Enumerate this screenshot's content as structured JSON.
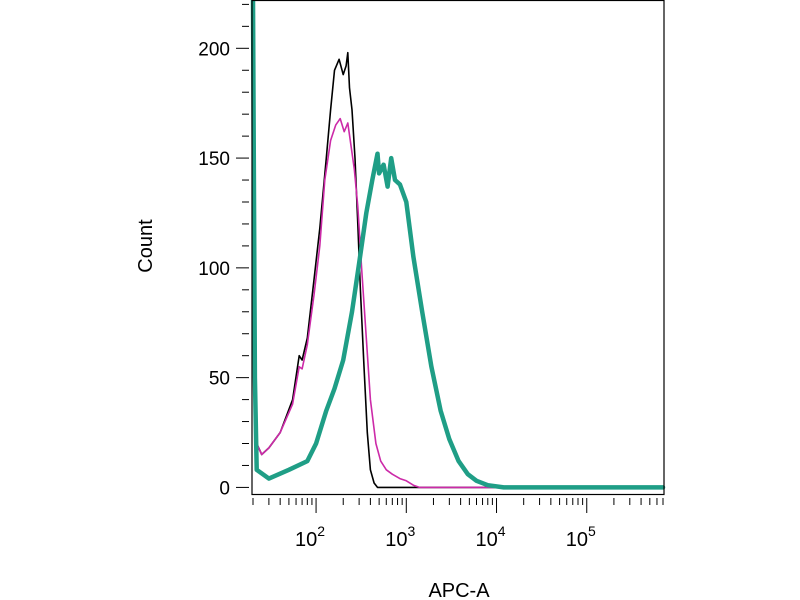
{
  "chart_data": {
    "type": "line",
    "title": "",
    "xlabel": "APC-A",
    "ylabel": "Count",
    "x_scale": "log",
    "xlim": [
      20,
      700000
    ],
    "ylim": [
      -3,
      222
    ],
    "grid": false,
    "legend": "none",
    "y_ticks": [
      0,
      50,
      100,
      150,
      200
    ],
    "x_ticks": [
      {
        "value": 100,
        "base": "10",
        "exp": "2"
      },
      {
        "value": 1000,
        "base": "10",
        "exp": "3"
      },
      {
        "value": 10000,
        "base": "10",
        "exp": "4"
      },
      {
        "value": 100000,
        "base": "10",
        "exp": "5"
      }
    ],
    "series": [
      {
        "color": "#000000",
        "stroke": "thin",
        "points": [
          [
            20,
            240
          ],
          [
            21,
            60
          ],
          [
            22,
            20
          ],
          [
            25,
            15
          ],
          [
            30,
            18
          ],
          [
            40,
            25
          ],
          [
            55,
            40
          ],
          [
            65,
            60
          ],
          [
            70,
            58
          ],
          [
            80,
            68
          ],
          [
            95,
            95
          ],
          [
            110,
            118
          ],
          [
            130,
            150
          ],
          [
            145,
            172
          ],
          [
            160,
            190
          ],
          [
            180,
            195
          ],
          [
            200,
            188
          ],
          [
            215,
            192
          ],
          [
            225,
            198
          ],
          [
            235,
            182
          ],
          [
            250,
            172
          ],
          [
            270,
            150
          ],
          [
            290,
            120
          ],
          [
            310,
            90
          ],
          [
            340,
            55
          ],
          [
            370,
            25
          ],
          [
            400,
            8
          ],
          [
            440,
            2
          ],
          [
            480,
            0
          ],
          [
            600,
            0
          ],
          [
            700000,
            0
          ]
        ]
      },
      {
        "color": "#cc2aa8",
        "stroke": "thin",
        "points": [
          [
            20,
            240
          ],
          [
            21,
            60
          ],
          [
            22,
            20
          ],
          [
            25,
            15
          ],
          [
            30,
            18
          ],
          [
            40,
            25
          ],
          [
            55,
            38
          ],
          [
            65,
            55
          ],
          [
            70,
            54
          ],
          [
            80,
            65
          ],
          [
            95,
            88
          ],
          [
            110,
            110
          ],
          [
            125,
            140
          ],
          [
            145,
            158
          ],
          [
            165,
            165
          ],
          [
            185,
            168
          ],
          [
            205,
            162
          ],
          [
            225,
            166
          ],
          [
            245,
            155
          ],
          [
            265,
            145
          ],
          [
            290,
            128
          ],
          [
            320,
            100
          ],
          [
            360,
            68
          ],
          [
            400,
            40
          ],
          [
            460,
            20
          ],
          [
            520,
            12
          ],
          [
            600,
            8
          ],
          [
            700,
            6
          ],
          [
            850,
            4
          ],
          [
            1000,
            3
          ],
          [
            1200,
            1
          ],
          [
            1400,
            0
          ],
          [
            700000,
            0
          ]
        ]
      },
      {
        "color": "#1f9e86",
        "stroke": "thick",
        "points": [
          [
            20,
            240
          ],
          [
            21,
            50
          ],
          [
            22,
            8
          ],
          [
            30,
            4
          ],
          [
            50,
            8
          ],
          [
            80,
            12
          ],
          [
            100,
            20
          ],
          [
            130,
            35
          ],
          [
            160,
            45
          ],
          [
            200,
            58
          ],
          [
            250,
            80
          ],
          [
            300,
            102
          ],
          [
            360,
            125
          ],
          [
            420,
            140
          ],
          [
            480,
            152
          ],
          [
            500,
            143
          ],
          [
            560,
            147
          ],
          [
            620,
            137
          ],
          [
            680,
            150
          ],
          [
            750,
            140
          ],
          [
            850,
            138
          ],
          [
            1000,
            130
          ],
          [
            1200,
            105
          ],
          [
            1500,
            80
          ],
          [
            1900,
            55
          ],
          [
            2400,
            35
          ],
          [
            3000,
            22
          ],
          [
            3800,
            12
          ],
          [
            4800,
            6
          ],
          [
            6000,
            3
          ],
          [
            8000,
            1
          ],
          [
            12000,
            0
          ],
          [
            700000,
            0
          ]
        ]
      }
    ]
  }
}
